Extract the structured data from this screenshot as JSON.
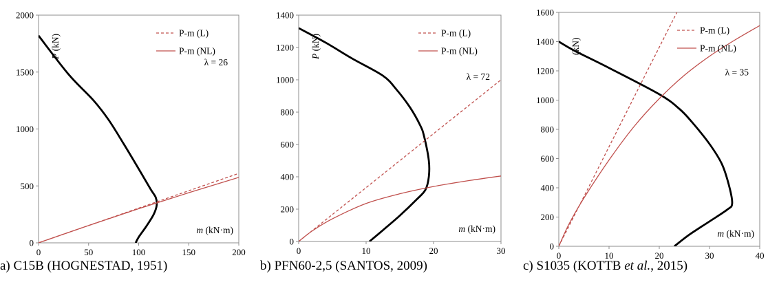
{
  "chart_data": [
    {
      "type": "line",
      "caption": "a) C15B (HOGNESTAD, 1951)",
      "caption_parts": [
        "a) C15B (HOGNESTAD, 1951)"
      ],
      "xlim": [
        0,
        200
      ],
      "ylim": [
        0,
        2000
      ],
      "xticks": [
        "0",
        "50",
        "100",
        "150",
        "200"
      ],
      "yticks": [
        "0",
        "500",
        "1000",
        "1500",
        "2000"
      ],
      "xlabel_italic": "m",
      "xlabel_rest": " (kN·m)",
      "ylabel_italic": "P",
      "ylabel_rest": " (kN)",
      "annotation": "λ = 26",
      "annotation_pos": [
        200,
        1560
      ],
      "legend": [
        "P-m (L)",
        "P-m (NL)"
      ],
      "series": [
        {
          "name": "",
          "style": "capacity",
          "x": [
            0,
            30,
            55,
            70,
            85,
            100,
            112,
            117,
            118,
            115,
            108,
            100,
            97
          ],
          "y": [
            1820,
            1480,
            1250,
            1080,
            870,
            650,
            470,
            400,
            330,
            250,
            150,
            50,
            0
          ]
        },
        {
          "name": "P-m (L)",
          "style": "linear",
          "x": [
            0,
            200
          ],
          "y": [
            0,
            610
          ]
        },
        {
          "name": "P-m (NL)",
          "style": "nonlinear",
          "x": [
            0,
            50,
            100,
            150,
            200
          ],
          "y": [
            0,
            152,
            300,
            440,
            575
          ]
        }
      ]
    },
    {
      "type": "line",
      "caption": "b) PFN60-2,5 (SANTOS, 2009)",
      "caption_parts": [
        "b) PFN60-2,5 (SANTOS, 2009)"
      ],
      "xlim": [
        0,
        30
      ],
      "ylim": [
        0,
        1400
      ],
      "xticks": [
        "0",
        "10",
        "20",
        "30"
      ],
      "yticks": [
        "0",
        "200",
        "400",
        "600",
        "800",
        "1000",
        "1200",
        "1400"
      ],
      "xlabel_italic": "m",
      "xlabel_rest": " (kN·m)",
      "ylabel_italic": "P",
      "ylabel_rest": " (kN)",
      "annotation": "λ = 72",
      "annotation_pos": [
        30,
        1000
      ],
      "legend": [
        "P-m (L)",
        "P-m (NL)"
      ],
      "series": [
        {
          "name": "",
          "style": "capacity",
          "x": [
            0,
            4,
            8,
            12.5,
            14.5,
            16.5,
            18,
            18.6,
            19.3,
            19.3,
            18.8,
            17.5,
            15,
            12.5,
            10.5
          ],
          "y": [
            1320,
            1230,
            1130,
            1025,
            940,
            830,
            720,
            650,
            500,
            400,
            320,
            260,
            160,
            70,
            0
          ]
        },
        {
          "name": "P-m (L)",
          "style": "linear",
          "x": [
            0,
            30
          ],
          "y": [
            0,
            1000
          ]
        },
        {
          "name": "P-m (NL)",
          "style": "nonlinear",
          "x": [
            0,
            2,
            5,
            10,
            15,
            20,
            25,
            30
          ],
          "y": [
            0,
            65,
            140,
            235,
            295,
            340,
            375,
            405
          ]
        }
      ]
    },
    {
      "type": "line",
      "caption": "c) S1035 (KOTTB et al., 2015)",
      "caption_parts": [
        "c) S1035 (KOTTB ",
        "et al.",
        ", 2015)"
      ],
      "xlim": [
        0,
        40
      ],
      "ylim": [
        0,
        1600
      ],
      "xticks": [
        "0",
        "10",
        "20",
        "30",
        "40"
      ],
      "yticks": [
        "0",
        "200",
        "400",
        "600",
        "800",
        "1000",
        "1200",
        "1400",
        "1600"
      ],
      "xlabel_italic": "m",
      "xlabel_rest": " (kN·m)",
      "ylabel_italic": "",
      "ylabel_rest": "(kN)",
      "annotation": "λ = 35",
      "annotation_pos": [
        40,
        1170
      ],
      "legend": [
        "P-m (L)",
        "P-m (NL)"
      ],
      "series": [
        {
          "name": "",
          "style": "capacity",
          "x": [
            0,
            3,
            10,
            20,
            24,
            26.5,
            30,
            32.5,
            34,
            34.5,
            33.5,
            30,
            26,
            23
          ],
          "y": [
            1400,
            1340,
            1220,
            1040,
            940,
            850,
            700,
            560,
            400,
            290,
            250,
            170,
            80,
            0
          ]
        },
        {
          "name": "P-m (L)",
          "style": "linear",
          "x": [
            0,
            23.5
          ],
          "y": [
            0,
            1600
          ]
        },
        {
          "name": "P-m (NL)",
          "style": "nonlinear",
          "x": [
            0,
            2,
            5,
            10,
            15,
            20,
            25,
            30,
            35,
            40
          ],
          "y": [
            0,
            150,
            330,
            590,
            820,
            1010,
            1170,
            1300,
            1410,
            1510
          ]
        }
      ]
    }
  ]
}
